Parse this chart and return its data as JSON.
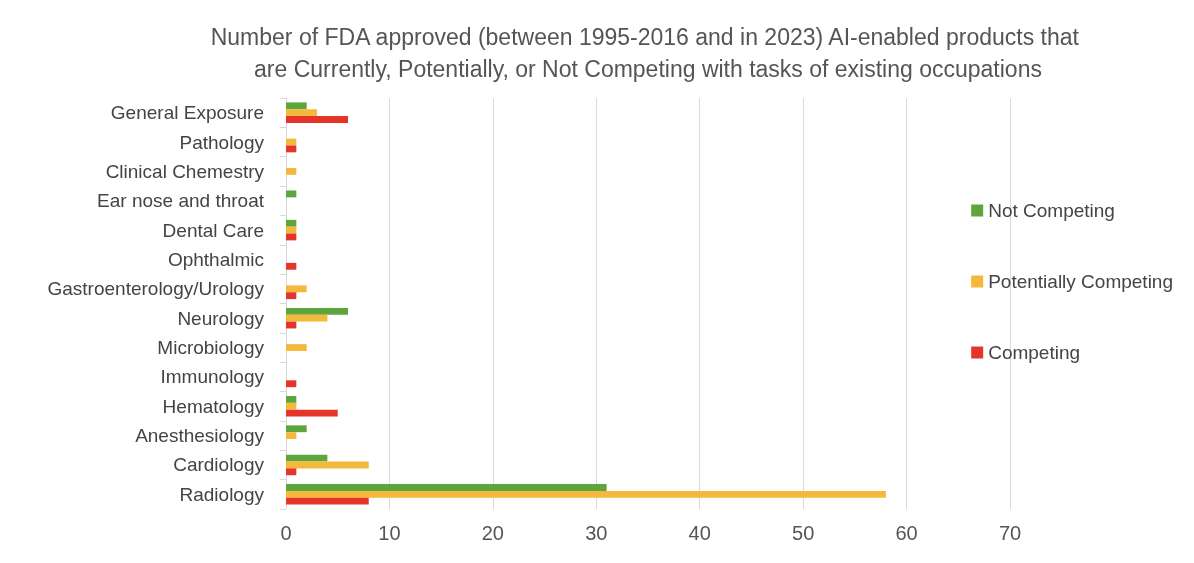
{
  "chart_data": {
    "type": "bar",
    "orientation": "horizontal",
    "title": "Number of FDA approved (between 1995-2016 and in 2023) AI-enabled products that are Currently, Potentially, or Not Competing with tasks of existing occupations",
    "categories": [
      "General Exposure",
      "Pathology",
      "Clinical Chemestry",
      "Ear nose and throat",
      "Dental Care",
      "Ophthalmic",
      "Gastroenterology/Urology",
      "Neurology",
      "Microbiology",
      "Immunology",
      "Hematology",
      "Anesthesiology",
      "Cardiology",
      "Radiology"
    ],
    "series": [
      {
        "name": "Not Competing",
        "color": "#5ea53b",
        "values": [
          2,
          0,
          0,
          1,
          1,
          0,
          0,
          6,
          0,
          0,
          1,
          2,
          4,
          31
        ]
      },
      {
        "name": "Potentially Competing",
        "color": "#f4b93a",
        "values": [
          3,
          1,
          1,
          0,
          1,
          0,
          2,
          4,
          2,
          0,
          1,
          1,
          8,
          58
        ]
      },
      {
        "name": "Competing",
        "color": "#e5352a",
        "values": [
          6,
          1,
          0,
          0,
          1,
          1,
          1,
          1,
          0,
          1,
          5,
          0,
          1,
          8
        ]
      }
    ],
    "xlim": [
      0,
      70
    ],
    "xticks": [
      0,
      10,
      20,
      30,
      40,
      50,
      60,
      70
    ],
    "grid": "x",
    "legend": "right"
  }
}
